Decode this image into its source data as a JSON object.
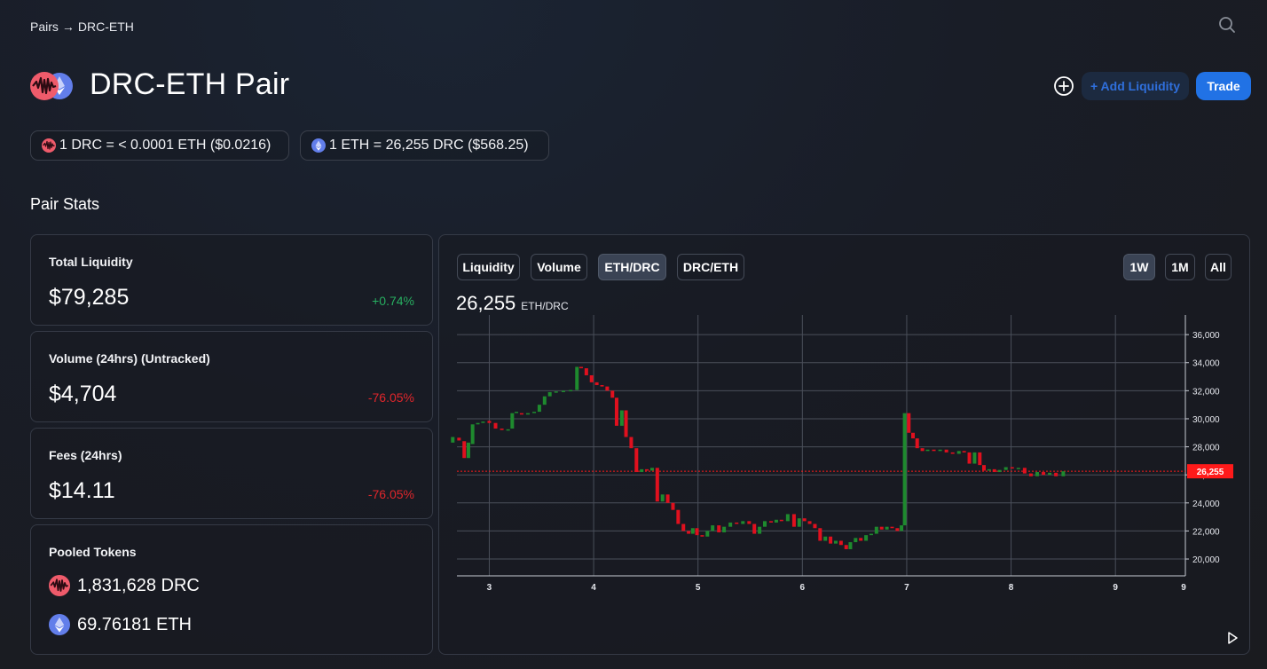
{
  "breadcrumb": {
    "root": "Pairs",
    "separator": "→",
    "current": "DRC-ETH"
  },
  "header": {
    "title": "DRC-ETH Pair",
    "add_liquidity_label": "+ Add Liquidity",
    "trade_label": "Trade"
  },
  "rates": {
    "drc_to_eth": "1 DRC = < 0.0001 ETH ($0.0216)",
    "eth_to_drc": "1 ETH = 26,255 DRC ($568.25)"
  },
  "stats": {
    "section_title": "Pair Stats",
    "total_liquidity": {
      "label": "Total Liquidity",
      "value": "$79,285",
      "change": "+0.74%"
    },
    "volume": {
      "label": "Volume (24hrs) (Untracked)",
      "value": "$4,704",
      "change": "-76.05%"
    },
    "fees": {
      "label": "Fees (24hrs)",
      "value": "$14.11",
      "change": "-76.05%"
    },
    "pooled": {
      "label": "Pooled Tokens",
      "drc": "1,831,628 DRC",
      "eth": "69.76181 ETH"
    }
  },
  "chart_tabs": [
    "Liquidity",
    "Volume",
    "ETH/DRC",
    "DRC/ETH"
  ],
  "active_tab": "ETH/DRC",
  "range_tabs": [
    "1W",
    "1M",
    "All"
  ],
  "active_range": "1W",
  "price_readout": {
    "value": "26,255",
    "unit": "ETH/DRC"
  },
  "colors": {
    "up": "#1e8a2e",
    "down": "#e0101e",
    "accent": "#2172e5",
    "current_price": "#ff1a1a"
  },
  "icons": {
    "search": "search-icon",
    "add": "plus-circle-icon",
    "play": "play-icon",
    "drc": "drc-token-icon",
    "eth": "eth-token-icon"
  },
  "chart_data": {
    "type": "candlestick",
    "x_ticks": [
      "3",
      "4",
      "5",
      "6",
      "7",
      "8",
      "9",
      "9"
    ],
    "y_ticks": [
      "20,000",
      "22,000",
      "24,000",
      "26,000",
      "28,000",
      "30,000",
      "32,000",
      "34,000",
      "36,000"
    ],
    "ylim": [
      18800,
      37400
    ],
    "current_price": 26255,
    "current_price_label": "26,255",
    "grid": true,
    "candles": [
      [
        2.65,
        28300,
        28700
      ],
      [
        2.71,
        28650,
        28450
      ],
      [
        2.76,
        28400,
        27200
      ],
      [
        2.8,
        27200,
        28300
      ],
      [
        2.84,
        28200,
        29600
      ],
      [
        2.89,
        29600,
        29700
      ],
      [
        2.94,
        29750,
        29800
      ],
      [
        3.0,
        29850,
        29700
      ],
      [
        3.06,
        29700,
        29300
      ],
      [
        3.12,
        29300,
        29200
      ],
      [
        3.18,
        29200,
        29250
      ],
      [
        3.22,
        29300,
        30400
      ],
      [
        3.26,
        30450,
        30500
      ],
      [
        3.31,
        30400,
        30300
      ],
      [
        3.37,
        30300,
        30400
      ],
      [
        3.43,
        30450,
        30500
      ],
      [
        3.48,
        30500,
        31000
      ],
      [
        3.53,
        31000,
        31600
      ],
      [
        3.58,
        31600,
        31900
      ],
      [
        3.64,
        31950,
        31950
      ],
      [
        3.71,
        31900,
        32000
      ],
      [
        3.78,
        32000,
        32050
      ],
      [
        3.84,
        32050,
        33700
      ],
      [
        3.88,
        33700,
        33600
      ],
      [
        3.93,
        33600,
        33100
      ],
      [
        3.98,
        33100,
        32600
      ],
      [
        4.03,
        32600,
        32400
      ],
      [
        4.08,
        32400,
        32300
      ],
      [
        4.13,
        32300,
        32000
      ],
      [
        4.18,
        32000,
        31500
      ],
      [
        4.22,
        31500,
        29500
      ],
      [
        4.27,
        29500,
        30600
      ],
      [
        4.31,
        30600,
        28700
      ],
      [
        4.36,
        28700,
        27900
      ],
      [
        4.41,
        27900,
        26200
      ],
      [
        4.46,
        26200,
        26400
      ],
      [
        4.51,
        26400,
        26300
      ],
      [
        4.56,
        26300,
        26500
      ],
      [
        4.61,
        26500,
        24100
      ],
      [
        4.66,
        24100,
        24600
      ],
      [
        4.71,
        24600,
        24000
      ],
      [
        4.76,
        24000,
        23500
      ],
      [
        4.81,
        23500,
        22500
      ],
      [
        4.86,
        22500,
        22000
      ],
      [
        4.91,
        22000,
        21800
      ],
      [
        4.95,
        21800,
        22200
      ],
      [
        4.99,
        22200,
        21700
      ],
      [
        5.04,
        21700,
        21600
      ],
      [
        5.09,
        21600,
        22000
      ],
      [
        5.14,
        22000,
        22400
      ],
      [
        5.2,
        22400,
        21900
      ],
      [
        5.25,
        21900,
        22300
      ],
      [
        5.31,
        22300,
        22600
      ],
      [
        5.37,
        22600,
        22500
      ],
      [
        5.43,
        22500,
        22700
      ],
      [
        5.49,
        22700,
        22500
      ],
      [
        5.54,
        22500,
        21800
      ],
      [
        5.59,
        21800,
        22300
      ],
      [
        5.64,
        22300,
        22700
      ],
      [
        5.7,
        22700,
        22600
      ],
      [
        5.75,
        22600,
        22800
      ],
      [
        5.8,
        22800,
        22700
      ],
      [
        5.86,
        22700,
        23200
      ],
      [
        5.92,
        23200,
        22300
      ],
      [
        5.97,
        22300,
        22900
      ],
      [
        6.02,
        22900,
        22700
      ],
      [
        6.07,
        22700,
        22500
      ],
      [
        6.12,
        22500,
        22200
      ],
      [
        6.17,
        22200,
        21300
      ],
      [
        6.22,
        21300,
        21600
      ],
      [
        6.27,
        21600,
        21100
      ],
      [
        6.32,
        21100,
        21300
      ],
      [
        6.37,
        21300,
        21000
      ],
      [
        6.42,
        21000,
        20700
      ],
      [
        6.46,
        20700,
        21200
      ],
      [
        6.51,
        21200,
        21500
      ],
      [
        6.56,
        21500,
        21300
      ],
      [
        6.61,
        21300,
        21700
      ],
      [
        6.66,
        21700,
        21800
      ],
      [
        6.71,
        21800,
        22300
      ],
      [
        6.76,
        22300,
        22100
      ],
      [
        6.81,
        22100,
        22300
      ],
      [
        6.86,
        22300,
        22200
      ],
      [
        6.91,
        22200,
        22000
      ],
      [
        6.95,
        22000,
        22400
      ],
      [
        6.98,
        22400,
        30400
      ],
      [
        7.02,
        30400,
        29000
      ],
      [
        7.06,
        29000,
        28600
      ],
      [
        7.1,
        28600,
        27900
      ],
      [
        7.15,
        27900,
        27700
      ],
      [
        7.2,
        27700,
        27800
      ],
      [
        7.26,
        27800,
        27700
      ],
      [
        7.32,
        27700,
        27800
      ],
      [
        7.38,
        27800,
        27600
      ],
      [
        7.44,
        27600,
        27500
      ],
      [
        7.5,
        27500,
        27700
      ],
      [
        7.55,
        27700,
        27600
      ],
      [
        7.6,
        27600,
        26800
      ],
      [
        7.65,
        26800,
        27600
      ],
      [
        7.7,
        27600,
        26700
      ],
      [
        7.74,
        26700,
        26300
      ],
      [
        7.79,
        26300,
        26400
      ],
      [
        7.84,
        26400,
        26200
      ],
      [
        7.89,
        26200,
        26350
      ],
      [
        7.95,
        26350,
        26550
      ],
      [
        8.01,
        26550,
        26450
      ],
      [
        8.07,
        26450,
        26500
      ],
      [
        8.13,
        26500,
        26100
      ],
      [
        8.19,
        26100,
        25900
      ],
      [
        8.25,
        25900,
        26200
      ],
      [
        8.31,
        26200,
        26000
      ],
      [
        8.37,
        26000,
        26150
      ],
      [
        8.43,
        26150,
        25900
      ],
      [
        8.5,
        25900,
        26255
      ]
    ],
    "x_tick_positions": [
      3,
      4,
      5,
      6,
      7,
      8,
      9,
      9.67
    ]
  }
}
